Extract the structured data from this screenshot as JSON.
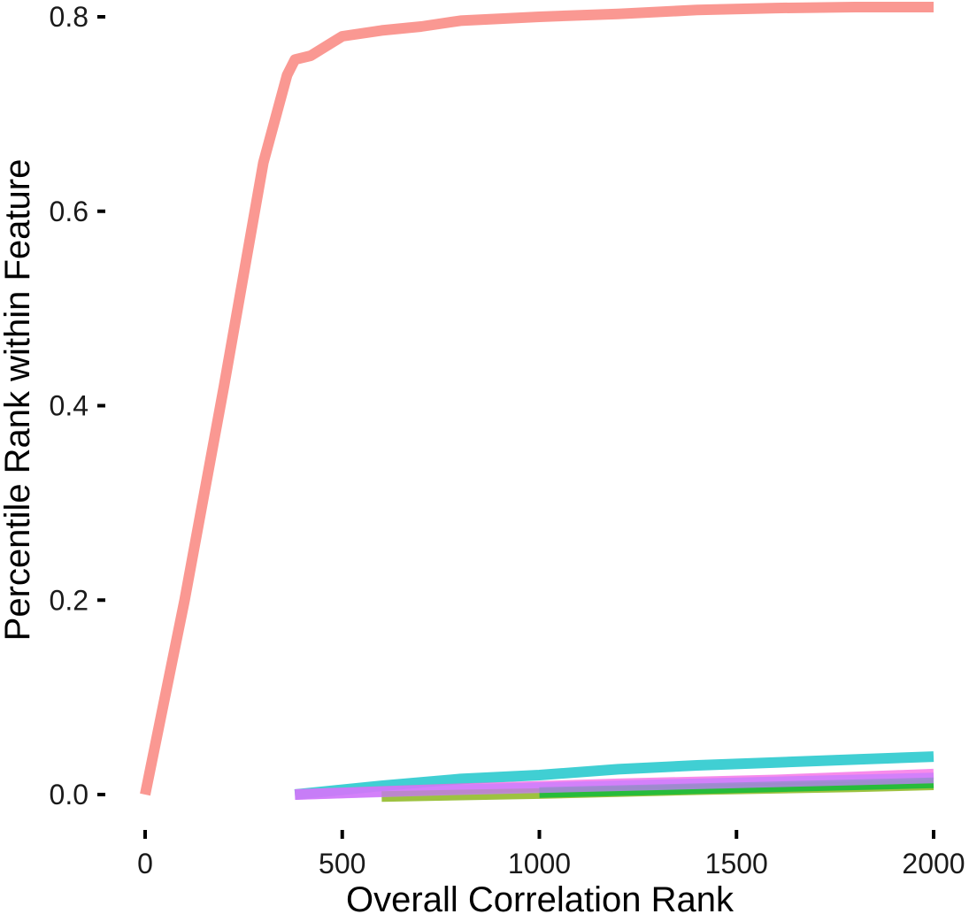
{
  "chart_data": {
    "type": "line",
    "title": "",
    "xlabel": "Overall Correlation Rank",
    "ylabel": "Percentile Rank within Feature",
    "xlim": [
      -70,
      2000
    ],
    "ylim": [
      -0.05,
      0.815
    ],
    "x_ticks": [
      0,
      500,
      1000,
      1500,
      2000
    ],
    "x_tick_labels": [
      "0",
      "500",
      "1000",
      "1500",
      "2000"
    ],
    "y_ticks": [
      0.0,
      0.2,
      0.4,
      0.6,
      0.8
    ],
    "y_tick_labels": [
      "0.0",
      "0.2",
      "0.4",
      "0.6",
      "0.8"
    ],
    "grid": false,
    "legend": "none",
    "series": [
      {
        "color": "#F8766D",
        "points": [
          [
            0,
            0.0
          ],
          [
            100,
            0.2
          ],
          [
            200,
            0.42
          ],
          [
            300,
            0.65
          ],
          [
            360,
            0.74
          ],
          [
            380,
            0.756
          ],
          [
            420,
            0.76
          ],
          [
            440,
            0.765
          ],
          [
            460,
            0.77
          ],
          [
            480,
            0.775
          ],
          [
            500,
            0.78
          ],
          [
            600,
            0.786
          ],
          [
            700,
            0.79
          ],
          [
            800,
            0.796
          ],
          [
            1000,
            0.8
          ],
          [
            1200,
            0.803
          ],
          [
            1400,
            0.807
          ],
          [
            1600,
            0.809
          ],
          [
            1800,
            0.81
          ],
          [
            2000,
            0.81
          ]
        ]
      },
      {
        "color": "#00BFC4",
        "points": [
          [
            380,
            0.0
          ],
          [
            600,
            0.009
          ],
          [
            800,
            0.016
          ],
          [
            1000,
            0.02
          ],
          [
            1200,
            0.026
          ],
          [
            1400,
            0.03
          ],
          [
            1600,
            0.033
          ],
          [
            1800,
            0.036
          ],
          [
            2000,
            0.039
          ]
        ]
      },
      {
        "color": "#F564E3",
        "points": [
          [
            380,
            0.0
          ],
          [
            800,
            0.006
          ],
          [
            1200,
            0.011
          ],
          [
            1600,
            0.015
          ],
          [
            2000,
            0.021
          ]
        ]
      },
      {
        "color": "#7CAE00",
        "points": [
          [
            600,
            -0.002
          ],
          [
            1000,
            0.001
          ],
          [
            1400,
            0.005
          ],
          [
            1800,
            0.008
          ],
          [
            2000,
            0.01
          ]
        ]
      },
      {
        "color": "#00BA38",
        "points": [
          [
            1000,
            0.002
          ],
          [
            1400,
            0.006
          ],
          [
            1800,
            0.01
          ],
          [
            2000,
            0.012
          ]
        ]
      },
      {
        "color": "#C77CFF",
        "points": [
          [
            380,
            0.0
          ],
          [
            700,
            0.004
          ],
          [
            1000,
            0.007
          ],
          [
            1400,
            0.011
          ],
          [
            1800,
            0.015
          ],
          [
            2000,
            0.017
          ]
        ]
      }
    ]
  }
}
